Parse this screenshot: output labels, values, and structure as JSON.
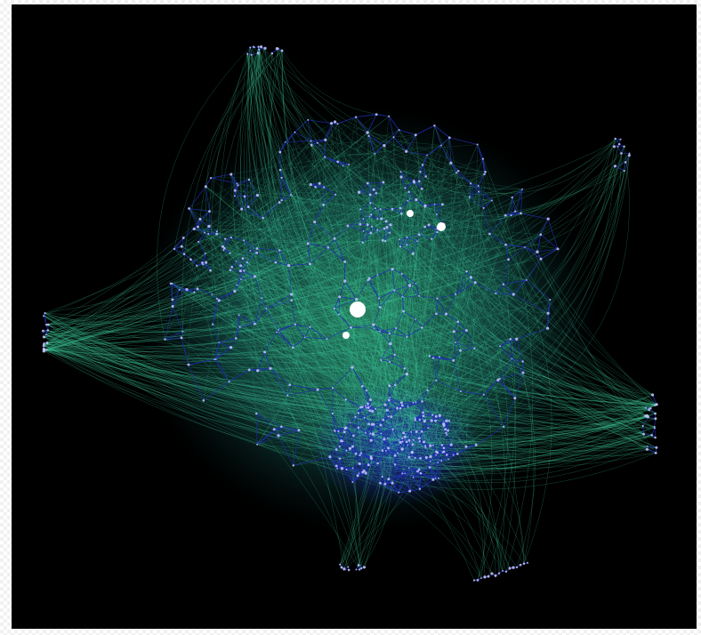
{
  "visualization": {
    "type": "network-graph",
    "colors": {
      "background": "#000000",
      "cross_edges": "#3fd3a0",
      "local_edges": "#1f2fb0",
      "nodes": "#c8c8ff",
      "hub_nodes": "#ffffff"
    },
    "clusters": [
      "top-left-satellite",
      "left-fan-satellite",
      "right-fan-satellite",
      "top-right-satellite",
      "bottom-small-satellite",
      "bottom-right-arc",
      "central-core",
      "dense-lower-community",
      "upper-left-community",
      "upper-right-community"
    ],
    "hubs": [
      "primary-hub",
      "secondary-hub-1",
      "secondary-hub-2",
      "secondary-hub-3"
    ]
  }
}
